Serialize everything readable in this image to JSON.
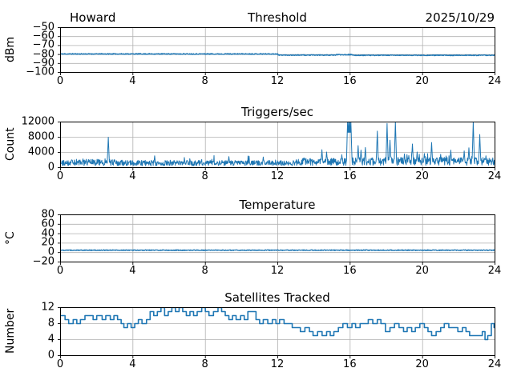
{
  "colors": {
    "line": "#1f77b4",
    "grid": "#b0b0b0",
    "text": "#000000",
    "background": "#ffffff",
    "spine": "#000000"
  },
  "chart_data": [
    {
      "type": "line",
      "title_left": "Howard",
      "title": "Threshold",
      "title_right": "2025/10/29",
      "ylabel": "dBm",
      "xlabel": "",
      "xlim": [
        0,
        24
      ],
      "ylim": [
        -100,
        -50
      ],
      "grid": true,
      "legend": "none",
      "xticks": [
        {
          "v": 0,
          "t": "0"
        },
        {
          "v": 4,
          "t": "4"
        },
        {
          "v": 8,
          "t": "8"
        },
        {
          "v": 12,
          "t": "12"
        },
        {
          "v": 16,
          "t": "16"
        },
        {
          "v": 20,
          "t": "20"
        },
        {
          "v": 24,
          "t": "24"
        }
      ],
      "yticks": [
        {
          "v": -100,
          "t": "−100"
        },
        {
          "v": -90,
          "t": "−90"
        },
        {
          "v": -80,
          "t": "−80"
        },
        {
          "v": -70,
          "t": "−70"
        },
        {
          "v": -60,
          "t": "−60"
        },
        {
          "v": -50,
          "t": "−50"
        }
      ],
      "series": {
        "kind": "noisy",
        "dt": 0.02,
        "noise_seed": 11,
        "segments": [
          {
            "x0": 0,
            "x1": 12,
            "mean": -79.4,
            "amp": 0.55
          },
          {
            "x0": 12,
            "x1": 15.2,
            "mean": -80.7,
            "amp": 0.5
          },
          {
            "x0": 15.2,
            "x1": 16.1,
            "mean": -80.2,
            "amp": 0.55
          },
          {
            "x0": 16.1,
            "x1": 24,
            "mean": -80.9,
            "amp": 0.45
          }
        ]
      }
    },
    {
      "type": "line",
      "title_left": "",
      "title": "Triggers/sec",
      "title_right": "",
      "ylabel": "Count",
      "xlabel": "",
      "xlim": [
        0,
        24
      ],
      "ylim": [
        0,
        12000
      ],
      "grid": true,
      "legend": "none",
      "xticks": [
        {
          "v": 0,
          "t": "0"
        },
        {
          "v": 4,
          "t": "4"
        },
        {
          "v": 8,
          "t": "8"
        },
        {
          "v": 12,
          "t": "12"
        },
        {
          "v": 16,
          "t": "16"
        },
        {
          "v": 20,
          "t": "20"
        },
        {
          "v": 24,
          "t": "24"
        }
      ],
      "yticks": [
        {
          "v": 0,
          "t": "0"
        },
        {
          "v": 4000,
          "t": "4000"
        },
        {
          "v": 8000,
          "t": "8000"
        },
        {
          "v": 12000,
          "t": "12000"
        }
      ],
      "series": {
        "kind": "spiky",
        "dt": 0.02,
        "noise_seed": 29,
        "tail_prob": 0.05,
        "tail_amp": 1400,
        "spike_width": 0.07,
        "segments": [
          {
            "x0": 0,
            "x1": 3,
            "base": 500,
            "amp": 1700
          },
          {
            "x0": 3,
            "x1": 8,
            "base": 450,
            "amp": 1500
          },
          {
            "x0": 8,
            "x1": 13,
            "base": 500,
            "amp": 1400
          },
          {
            "x0": 13,
            "x1": 15.8,
            "base": 550,
            "amp": 1900
          },
          {
            "x0": 15.8,
            "x1": 24,
            "base": 600,
            "amp": 2100
          }
        ],
        "spikes": [
          [
            2.64,
            8000
          ],
          [
            5.2,
            3100
          ],
          [
            9.3,
            2900
          ],
          [
            11.2,
            2800
          ],
          [
            14.44,
            4700
          ],
          [
            14.7,
            4100
          ],
          [
            15.54,
            3400
          ],
          [
            15.86,
            13000
          ],
          [
            15.92,
            13000
          ],
          [
            15.98,
            13000
          ],
          [
            16.04,
            13000
          ],
          [
            16.44,
            5800
          ],
          [
            16.6,
            4600
          ],
          [
            16.84,
            5300
          ],
          [
            17.5,
            9600
          ],
          [
            18.04,
            11600
          ],
          [
            18.2,
            7200
          ],
          [
            18.5,
            12400
          ],
          [
            19.0,
            3600
          ],
          [
            19.44,
            6200
          ],
          [
            19.7,
            4100
          ],
          [
            20.1,
            3700
          ],
          [
            20.5,
            6600
          ],
          [
            21.0,
            3500
          ],
          [
            21.56,
            4600
          ],
          [
            22.3,
            4400
          ],
          [
            22.56,
            5200
          ],
          [
            22.8,
            12300
          ],
          [
            23.16,
            8700
          ],
          [
            23.5,
            3100
          ]
        ]
      }
    },
    {
      "type": "line",
      "title_left": "",
      "title": "Temperature",
      "title_right": "",
      "ylabel": "°C",
      "xlabel": "",
      "xlim": [
        0,
        24
      ],
      "ylim": [
        -20,
        80
      ],
      "grid": true,
      "legend": "none",
      "xticks": [
        {
          "v": 0,
          "t": "0"
        },
        {
          "v": 4,
          "t": "4"
        },
        {
          "v": 8,
          "t": "8"
        },
        {
          "v": 12,
          "t": "12"
        },
        {
          "v": 16,
          "t": "16"
        },
        {
          "v": 20,
          "t": "20"
        },
        {
          "v": 24,
          "t": "24"
        }
      ],
      "yticks": [
        {
          "v": -20,
          "t": "−20"
        },
        {
          "v": 0,
          "t": "0"
        },
        {
          "v": 20,
          "t": "20"
        },
        {
          "v": 40,
          "t": "40"
        },
        {
          "v": 60,
          "t": "60"
        },
        {
          "v": 80,
          "t": "80"
        }
      ],
      "series": {
        "kind": "noisy",
        "dt": 0.02,
        "noise_seed": 47,
        "segments": [
          {
            "x0": 0,
            "x1": 24,
            "mean": 5,
            "amp": 0.9
          }
        ]
      }
    },
    {
      "type": "step",
      "title_left": "",
      "title": "Satellites Tracked",
      "title_right": "",
      "ylabel": "Number",
      "xlabel": "",
      "xlim": [
        0,
        24
      ],
      "ylim": [
        0,
        12
      ],
      "grid": true,
      "legend": "none",
      "xticks": [
        {
          "v": 0,
          "t": "0"
        },
        {
          "v": 4,
          "t": "4"
        },
        {
          "v": 8,
          "t": "8"
        },
        {
          "v": 12,
          "t": "12"
        },
        {
          "v": 16,
          "t": "16"
        },
        {
          "v": 20,
          "t": "20"
        },
        {
          "v": 24,
          "t": "24"
        }
      ],
      "yticks": [
        {
          "v": 0,
          "t": "0"
        },
        {
          "v": 4,
          "t": "4"
        },
        {
          "v": 8,
          "t": "8"
        },
        {
          "v": 12,
          "t": "12"
        }
      ],
      "series": {
        "kind": "steps",
        "points": [
          [
            0,
            10
          ],
          [
            0.25,
            9
          ],
          [
            0.45,
            8
          ],
          [
            0.7,
            9
          ],
          [
            0.9,
            8
          ],
          [
            1.1,
            9
          ],
          [
            1.35,
            10
          ],
          [
            1.6,
            10
          ],
          [
            1.8,
            9
          ],
          [
            2.0,
            10
          ],
          [
            2.3,
            9
          ],
          [
            2.5,
            10
          ],
          [
            2.75,
            9
          ],
          [
            2.95,
            10
          ],
          [
            3.15,
            9
          ],
          [
            3.35,
            8
          ],
          [
            3.5,
            7
          ],
          [
            3.7,
            8
          ],
          [
            3.9,
            7
          ],
          [
            4.1,
            8
          ],
          [
            4.3,
            9
          ],
          [
            4.5,
            8
          ],
          [
            4.75,
            9
          ],
          [
            4.95,
            11
          ],
          [
            5.15,
            10
          ],
          [
            5.35,
            11
          ],
          [
            5.55,
            12
          ],
          [
            5.75,
            10
          ],
          [
            5.95,
            11
          ],
          [
            6.15,
            12
          ],
          [
            6.35,
            11
          ],
          [
            6.55,
            12
          ],
          [
            6.75,
            11
          ],
          [
            6.95,
            10
          ],
          [
            7.15,
            11
          ],
          [
            7.35,
            10
          ],
          [
            7.55,
            11
          ],
          [
            7.8,
            12
          ],
          [
            8.0,
            11
          ],
          [
            8.2,
            10
          ],
          [
            8.45,
            11
          ],
          [
            8.7,
            12
          ],
          [
            8.9,
            11
          ],
          [
            9.1,
            10
          ],
          [
            9.3,
            9
          ],
          [
            9.5,
            10
          ],
          [
            9.7,
            9
          ],
          [
            9.95,
            10
          ],
          [
            10.15,
            9
          ],
          [
            10.35,
            11
          ],
          [
            10.6,
            11
          ],
          [
            10.8,
            9
          ],
          [
            11.0,
            8
          ],
          [
            11.2,
            9
          ],
          [
            11.45,
            8
          ],
          [
            11.7,
            9
          ],
          [
            11.9,
            8
          ],
          [
            12.1,
            9
          ],
          [
            12.35,
            8
          ],
          [
            12.6,
            8
          ],
          [
            12.8,
            7
          ],
          [
            13.0,
            7
          ],
          [
            13.25,
            6
          ],
          [
            13.5,
            7
          ],
          [
            13.75,
            6
          ],
          [
            13.95,
            5
          ],
          [
            14.2,
            6
          ],
          [
            14.45,
            5
          ],
          [
            14.7,
            6
          ],
          [
            14.9,
            5
          ],
          [
            15.1,
            6
          ],
          [
            15.35,
            7
          ],
          [
            15.6,
            8
          ],
          [
            15.85,
            7
          ],
          [
            16.1,
            8
          ],
          [
            16.3,
            7
          ],
          [
            16.55,
            8
          ],
          [
            16.8,
            8
          ],
          [
            17.0,
            9
          ],
          [
            17.25,
            8
          ],
          [
            17.5,
            9
          ],
          [
            17.7,
            8
          ],
          [
            17.95,
            6
          ],
          [
            18.2,
            7
          ],
          [
            18.45,
            8
          ],
          [
            18.7,
            7
          ],
          [
            18.95,
            6
          ],
          [
            19.15,
            7
          ],
          [
            19.4,
            6
          ],
          [
            19.6,
            7
          ],
          [
            19.85,
            8
          ],
          [
            20.1,
            7
          ],
          [
            20.3,
            6
          ],
          [
            20.5,
            5
          ],
          [
            20.75,
            6
          ],
          [
            21.0,
            7
          ],
          [
            21.2,
            8
          ],
          [
            21.45,
            7
          ],
          [
            21.7,
            7
          ],
          [
            21.95,
            6
          ],
          [
            22.2,
            7
          ],
          [
            22.4,
            6
          ],
          [
            22.6,
            5
          ],
          [
            22.85,
            5
          ],
          [
            23.05,
            5
          ],
          [
            23.3,
            6
          ],
          [
            23.45,
            4
          ],
          [
            23.6,
            5
          ],
          [
            23.8,
            8
          ],
          [
            23.95,
            7
          ],
          [
            24,
            7
          ]
        ]
      }
    }
  ]
}
